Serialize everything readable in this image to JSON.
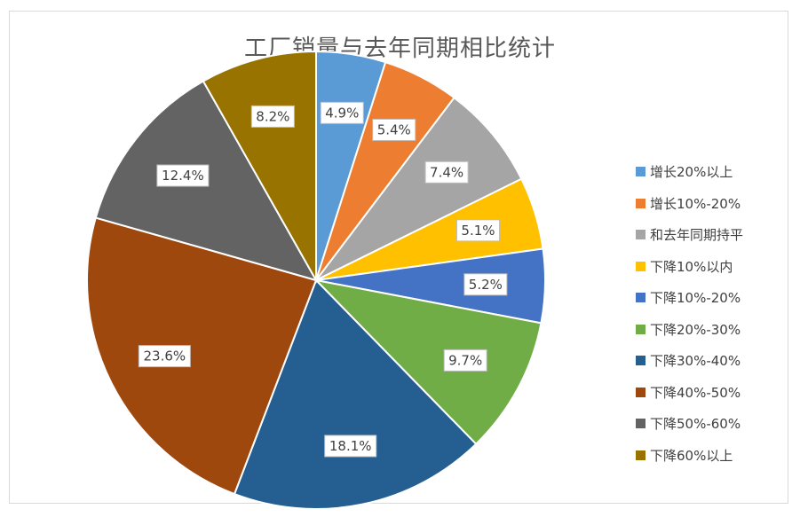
{
  "chart_data": {
    "type": "pie",
    "title": "工厂销量与去年同期相比统计",
    "slices": [
      {
        "label": "增长20%以上",
        "value": 4.9,
        "value_label": "4.9%",
        "color": "#5b9bd5"
      },
      {
        "label": "增长10%-20%",
        "value": 5.4,
        "value_label": "5.4%",
        "color": "#ed7d31"
      },
      {
        "label": "和去年同期持平",
        "value": 7.4,
        "value_label": "7.4%",
        "color": "#a5a5a5"
      },
      {
        "label": "下降10%以内",
        "value": 5.1,
        "value_label": "5.1%",
        "color": "#ffc000"
      },
      {
        "label": "下降10%-20%",
        "value": 5.2,
        "value_label": "5.2%",
        "color": "#4472c4"
      },
      {
        "label": "下降20%-30%",
        "value": 9.7,
        "value_label": "9.7%",
        "color": "#70ad47"
      },
      {
        "label": "下降30%-40%",
        "value": 18.1,
        "value_label": "18.1%",
        "color": "#255e91"
      },
      {
        "label": "下降40%-50%",
        "value": 23.6,
        "value_label": "23.6%",
        "color": "#9e480e"
      },
      {
        "label": "下降50%-60%",
        "value": 12.4,
        "value_label": "12.4%",
        "color": "#636363"
      },
      {
        "label": "下降60%以上",
        "value": 8.2,
        "value_label": "8.2%",
        "color": "#997300"
      }
    ],
    "legend_position": "right"
  }
}
